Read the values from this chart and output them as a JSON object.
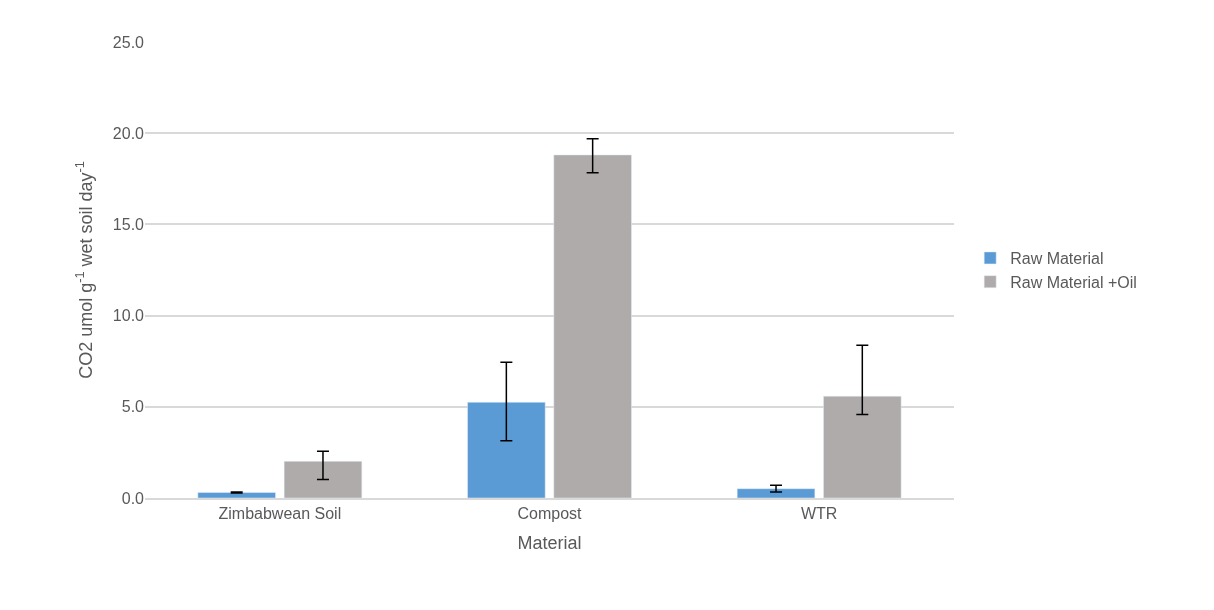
{
  "chart_data": {
    "type": "bar",
    "xlabel": "Material",
    "ylabel": "CO2 umol g$^{-1}$ wet soil day$^{-1}$",
    "categories": [
      "Zimbabwean Soil",
      "Compost",
      "WTR"
    ],
    "series": [
      {
        "name": "Raw Material",
        "color": "#5b9bd5",
        "values": [
          0.3,
          5.25,
          0.51
        ],
        "errors": [
          [
            0.27,
            0.33
          ],
          [
            3.14,
            7.44
          ],
          [
            0.33,
            0.7
          ]
        ]
      },
      {
        "name": "Raw Material +Oil",
        "color": "#afabab",
        "values": [
          2.01,
          18.81,
          5.58
        ],
        "errors": [
          [
            1.02,
            2.56
          ],
          [
            17.83,
            19.69
          ],
          [
            4.58,
            8.37
          ]
        ]
      }
    ],
    "ylim": [
      0,
      25
    ],
    "yticks": [
      {
        "value": 0,
        "label": "0.0"
      },
      {
        "value": 5,
        "label": "5.0"
      },
      {
        "value": 10,
        "label": "10.0"
      },
      {
        "value": 15,
        "label": "15.0"
      },
      {
        "value": 20,
        "label": "20.0"
      },
      {
        "value": 25,
        "label": "25.0"
      }
    ],
    "grid": "y",
    "legend": "right"
  }
}
